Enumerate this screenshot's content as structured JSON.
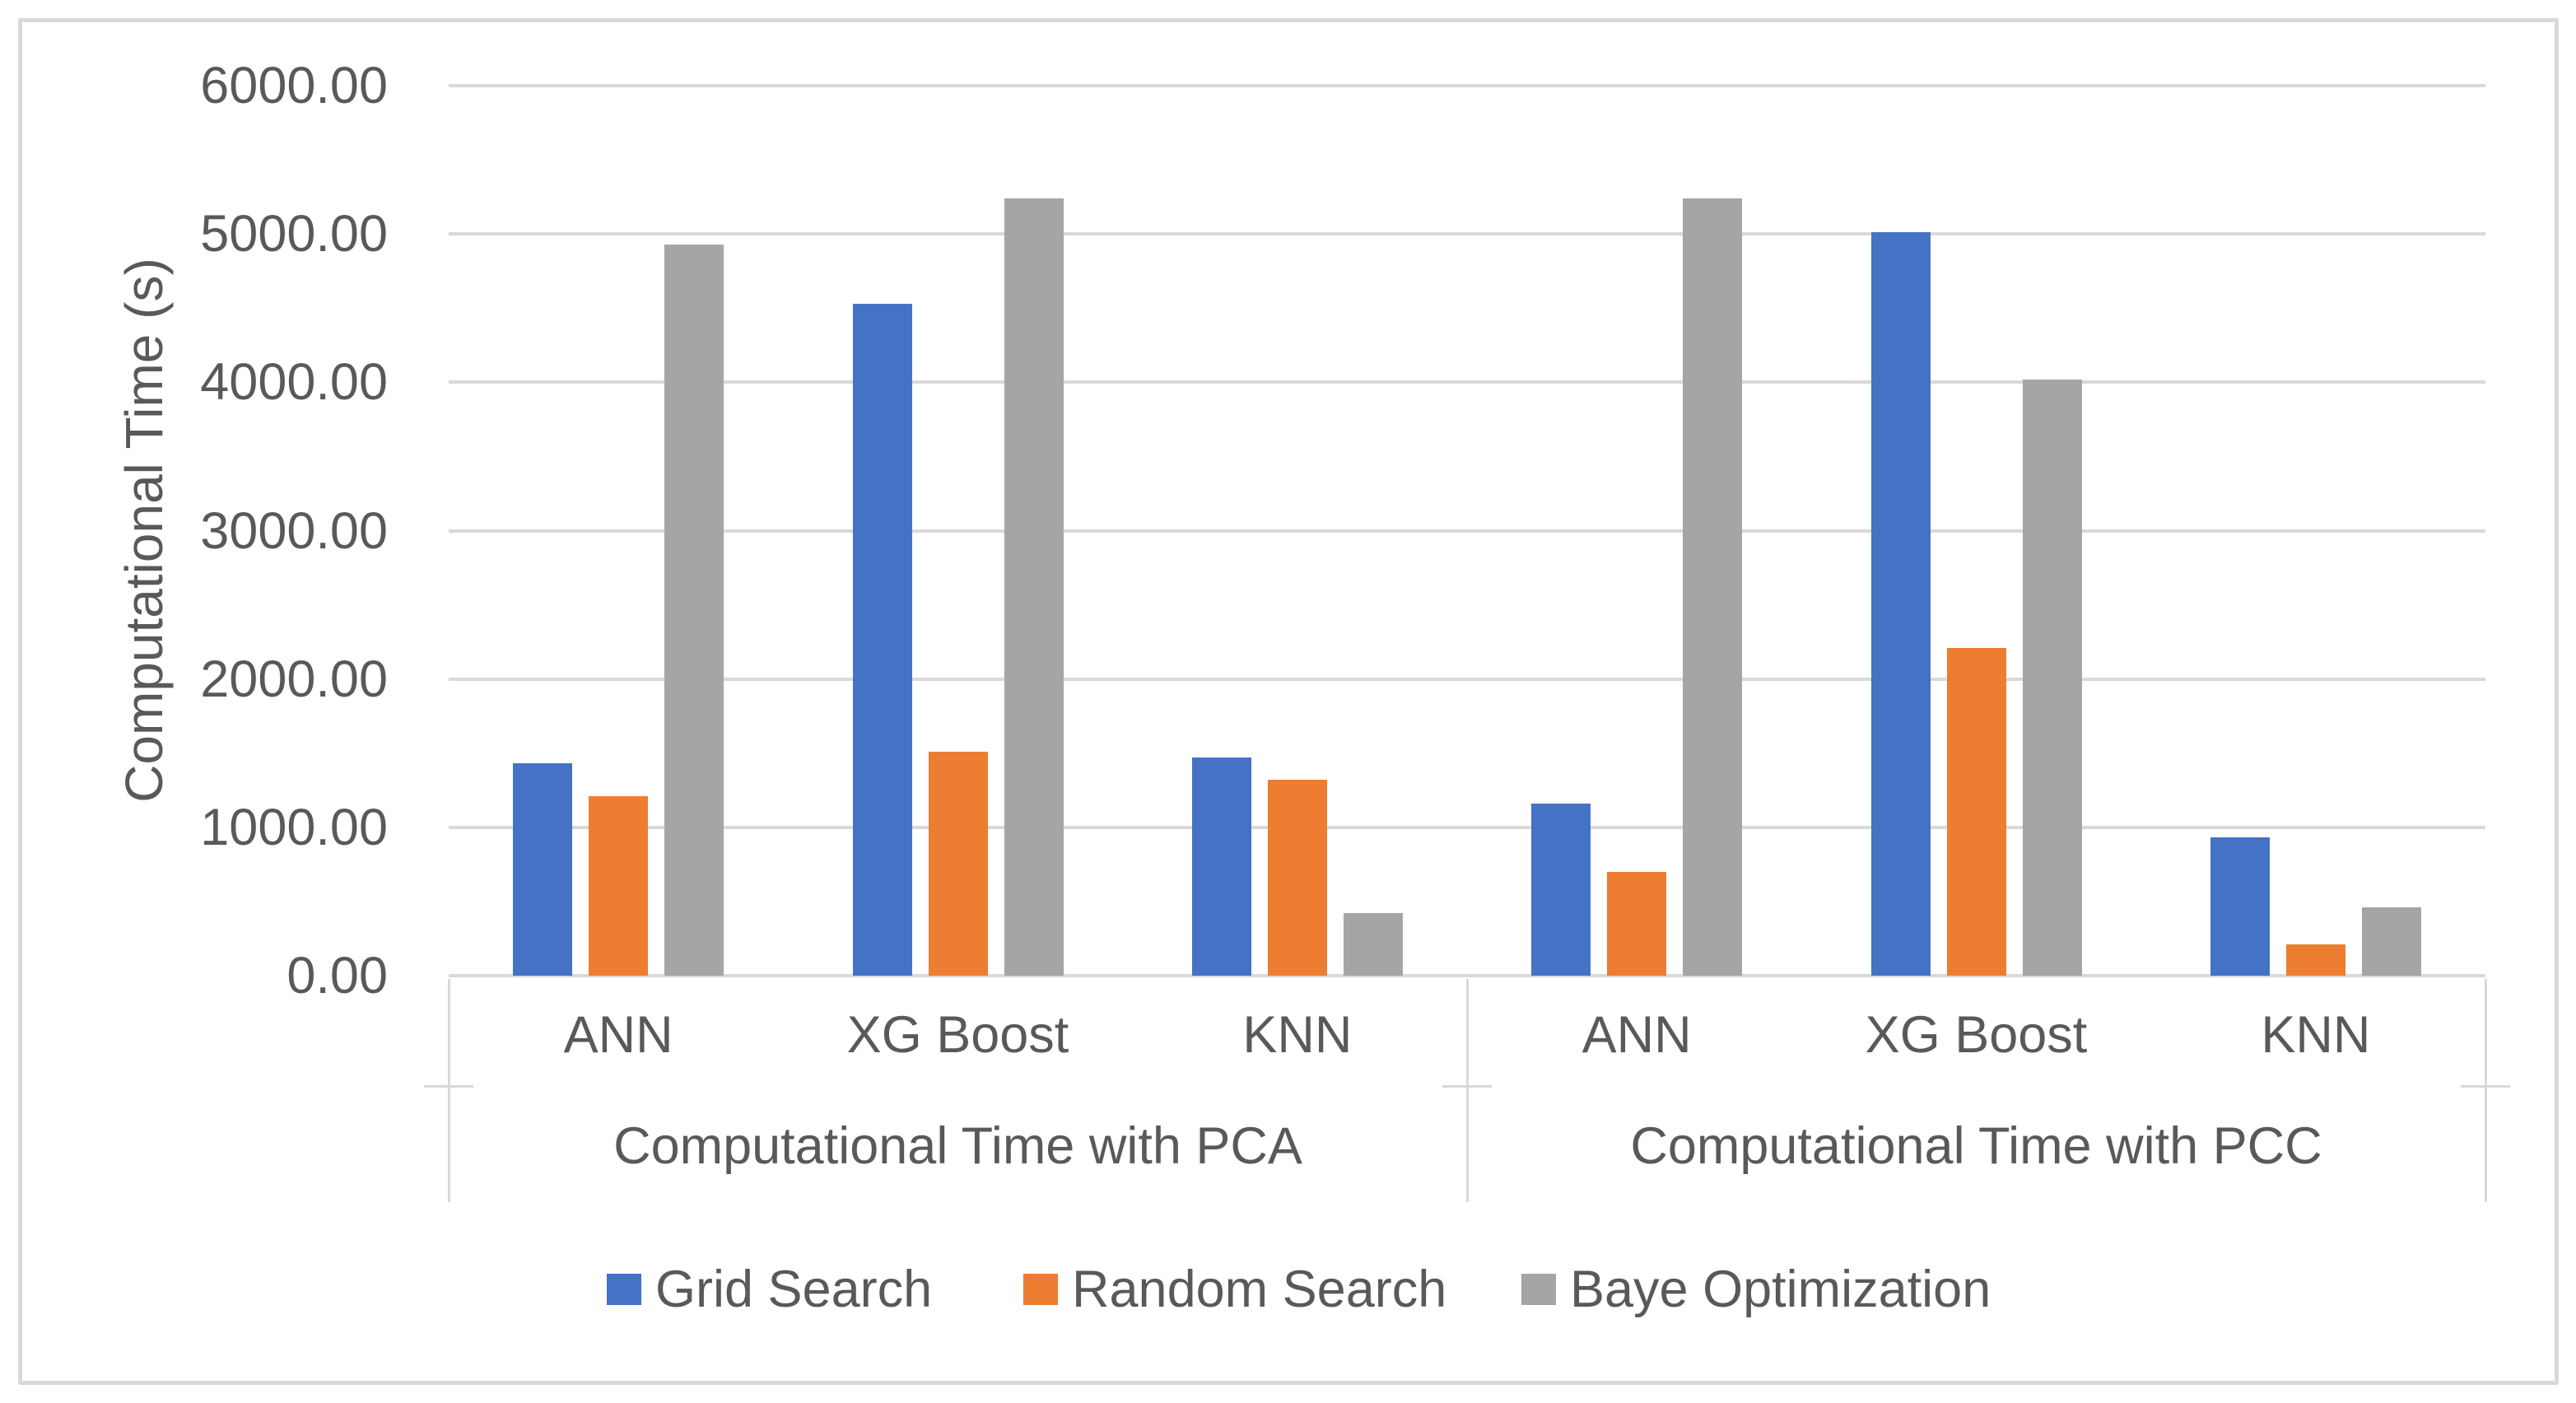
{
  "chart_data": {
    "type": "bar",
    "title": "",
    "ylabel": "Computational Time (s)",
    "xlabel": "",
    "ylim": [
      0,
      6000
    ],
    "y_tick_step": 1000,
    "y_tick_labels": [
      "0.00",
      "1000.00",
      "2000.00",
      "3000.00",
      "4000.00",
      "5000.00",
      "6000.00"
    ],
    "grid": true,
    "legend_position": "bottom",
    "group_labels": [
      "Computational Time with PCA",
      "Computational Time with PCC"
    ],
    "categories": [
      "ANN",
      "XG Boost",
      "KNN",
      "ANN",
      "XG Boost",
      "KNN"
    ],
    "series": [
      {
        "name": "Grid Search",
        "color": "#4472C4",
        "values": [
          1430,
          4530,
          1470,
          1160,
          5010,
          930
        ]
      },
      {
        "name": "Random Search",
        "color": "#ED7D31",
        "values": [
          1210,
          1510,
          1320,
          700,
          2210,
          210
        ]
      },
      {
        "name": "Baye Optimization",
        "color": "#A5A5A5",
        "values": [
          4930,
          5240,
          420,
          5240,
          4020,
          460
        ]
      }
    ]
  },
  "colors": {
    "text": "#595959",
    "gridline": "#D9D9D9",
    "frame_border": "#D9D9D9",
    "background": "#FFFFFF"
  }
}
